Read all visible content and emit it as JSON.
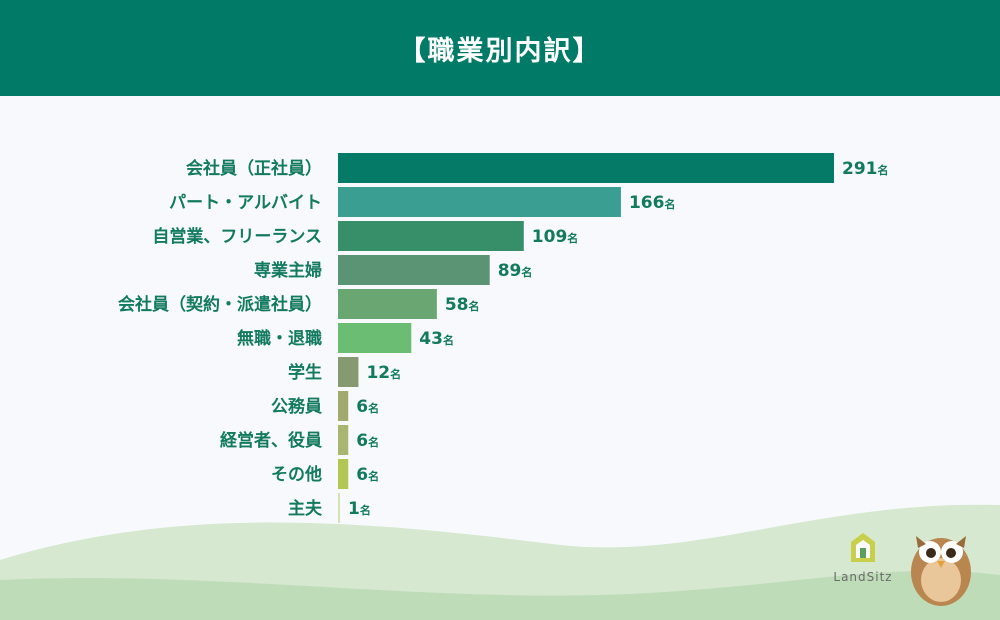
{
  "header": {
    "title": "【職業別内訳】"
  },
  "logo": {
    "name": "LandSitz"
  },
  "colors": {
    "header_bg": "#017b67",
    "label_text": "#127a5f",
    "bars": [
      "#047a67",
      "#3a9e92",
      "#378f69",
      "#5a9474",
      "#6aa671",
      "#6bbd74",
      "#869a72",
      "#a2a96f",
      "#a7b771",
      "#b2c653",
      "#d4e2b8"
    ]
  },
  "chart_data": {
    "type": "bar",
    "orientation": "horizontal",
    "categories": [
      "会社員（正社員）",
      "パート・アルバイト",
      "自営業、フリーランス",
      "専業主婦",
      "会社員（契約・派遣社員）",
      "無職・退職",
      "学生",
      "公務員",
      "経営者、役員",
      "その他",
      "主夫"
    ],
    "values": [
      291,
      166,
      109,
      89,
      58,
      43,
      12,
      6,
      6,
      6,
      1
    ],
    "value_suffix": "名",
    "grid": false,
    "legend": "none"
  }
}
